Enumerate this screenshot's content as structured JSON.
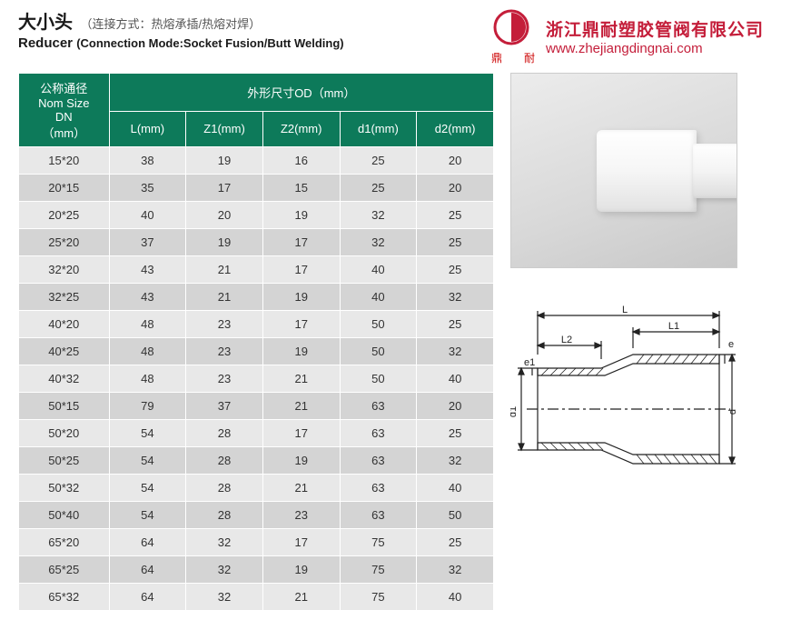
{
  "header": {
    "title_cn": "大小头",
    "subtitle_cn": "（连接方式：热熔承插/热熔对焊）",
    "title_en": "Reducer",
    "subtitle_en": "(Connection Mode:Socket Fusion/Butt Welding)"
  },
  "logo": {
    "color": "#c41e3a",
    "label_cn": "鼎　耐"
  },
  "company": {
    "name_cn": "浙江鼎耐塑胶管阀有限公司",
    "url": "www.zhejiangdingnai.com",
    "color": "#c41e3a"
  },
  "table": {
    "header_bg": "#0d7a5a",
    "header_fg": "#ffffff",
    "row_odd_bg": "#e8e8e8",
    "row_even_bg": "#d4d4d4",
    "col1_header_l1": "公称通径",
    "col1_header_l2": "Nom Size",
    "col1_header_l3": "DN",
    "col1_header_l4": "（mm）",
    "group_header": "外形尺寸OD（mm）",
    "sub_headers": [
      "L(mm)",
      "Z1(mm)",
      "Z2(mm)",
      "d1(mm)",
      "d2(mm)"
    ],
    "rows": [
      [
        "15*20",
        "38",
        "19",
        "16",
        "25",
        "20"
      ],
      [
        "20*15",
        "35",
        "17",
        "15",
        "25",
        "20"
      ],
      [
        "20*25",
        "40",
        "20",
        "19",
        "32",
        "25"
      ],
      [
        "25*20",
        "37",
        "19",
        "17",
        "32",
        "25"
      ],
      [
        "32*20",
        "43",
        "21",
        "17",
        "40",
        "25"
      ],
      [
        "32*25",
        "43",
        "21",
        "19",
        "40",
        "32"
      ],
      [
        "40*20",
        "48",
        "23",
        "17",
        "50",
        "25"
      ],
      [
        "40*25",
        "48",
        "23",
        "19",
        "50",
        "32"
      ],
      [
        "40*32",
        "48",
        "23",
        "21",
        "50",
        "40"
      ],
      [
        "50*15",
        "79",
        "37",
        "21",
        "63",
        "20"
      ],
      [
        "50*20",
        "54",
        "28",
        "17",
        "63",
        "25"
      ],
      [
        "50*25",
        "54",
        "28",
        "19",
        "63",
        "32"
      ],
      [
        "50*32",
        "54",
        "28",
        "21",
        "63",
        "40"
      ],
      [
        "50*40",
        "54",
        "28",
        "23",
        "63",
        "50"
      ],
      [
        "65*20",
        "64",
        "32",
        "17",
        "75",
        "25"
      ],
      [
        "65*25",
        "64",
        "32",
        "19",
        "75",
        "32"
      ],
      [
        "65*32",
        "64",
        "32",
        "21",
        "75",
        "40"
      ]
    ]
  },
  "diagram": {
    "labels": {
      "L": "L",
      "L1": "L1",
      "L2": "L2",
      "e": "e",
      "e1": "e1",
      "d": "d",
      "d1": "d1"
    },
    "stroke": "#222222",
    "stroke_width": 1.2
  },
  "render": {
    "bg_gradient": [
      "#ececec",
      "#d8d8d8",
      "#c8c8c8"
    ],
    "fitting_color": "#f6f6f6"
  }
}
